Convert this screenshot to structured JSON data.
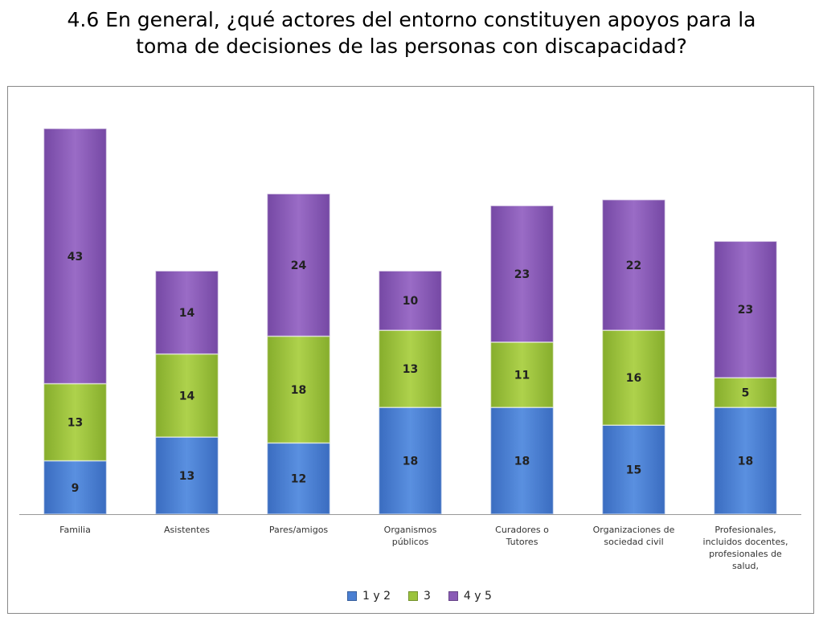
{
  "page": {
    "title_line1": "4.6 En general, ¿qué actores del entorno constituyen apoyos para la",
    "title_line2": "toma de decisiones de las personas con discapacidad?"
  },
  "chart_data": {
    "type": "bar",
    "stacked": true,
    "categories": [
      [
        "Familia"
      ],
      [
        "Asistentes"
      ],
      [
        "Pares/amigos"
      ],
      [
        "Organismos",
        "públicos"
      ],
      [
        "Curadores  o",
        "Tutores"
      ],
      [
        "Organizaciones de",
        "sociedad civil"
      ],
      [
        "Profesionales,",
        "incluidos docentes,",
        "profesionales de",
        "salud,"
      ]
    ],
    "series": [
      {
        "name": "1 y 2",
        "color": "#4a7fd2",
        "values": [
          9,
          13,
          12,
          18,
          18,
          15,
          18
        ]
      },
      {
        "name": "3",
        "color": "#9bc33d",
        "values": [
          13,
          14,
          18,
          13,
          11,
          16,
          5
        ]
      },
      {
        "name": "4 y 5",
        "color": "#8a5bb6",
        "values": [
          43,
          14,
          24,
          10,
          23,
          22,
          23
        ]
      }
    ],
    "ylim": [
      0,
      66
    ],
    "y_axis_visible": false,
    "grid": false,
    "data_labels": true,
    "legend_position": "bottom"
  }
}
